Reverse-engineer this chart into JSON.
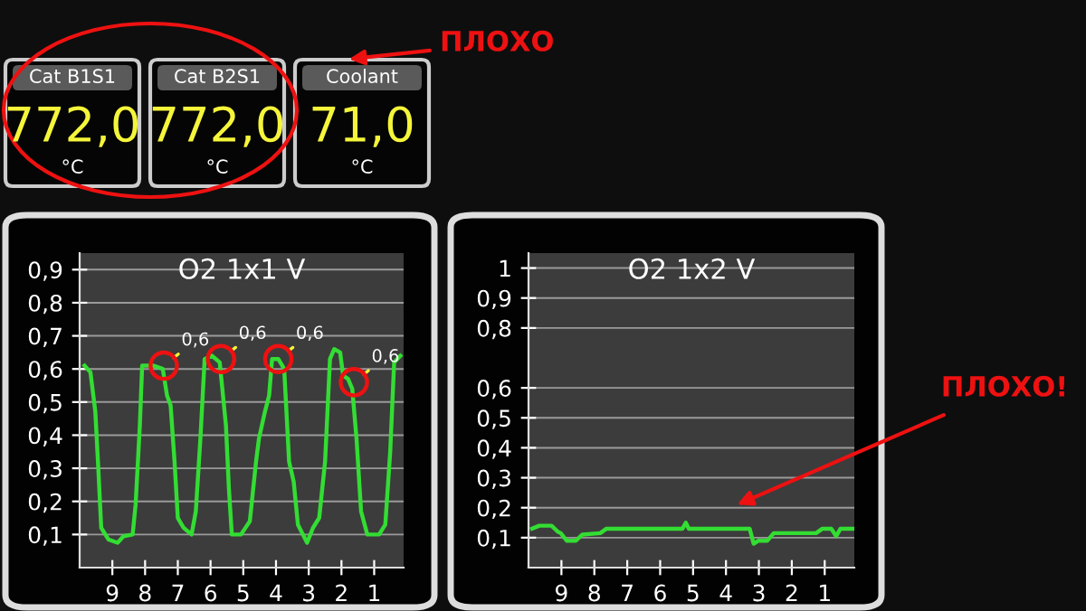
{
  "chart_data": [
    {
      "type": "other",
      "categories": [
        "Cat B1S1",
        "Cat B2S1",
        "Coolant"
      ],
      "value_labels": [
        "772,0",
        "772,0",
        "71,0"
      ],
      "annotations": [
        {
          "text": "°C",
          "x": "Cat B1S1"
        },
        {
          "text": "°C",
          "x": "Cat B2S1"
        },
        {
          "text": "°C",
          "x": "Coolant"
        },
        {
          "text": "ПЛОХО",
          "x": "Coolant"
        }
      ]
    },
    {
      "type": "line",
      "title": "O2 1x1 V",
      "xlim": [
        10,
        0.1
      ],
      "ylim": [
        0,
        0.95
      ],
      "grid": "y",
      "xticks": [
        9,
        8,
        7,
        6,
        5,
        4,
        3,
        2,
        1
      ],
      "yticks": [
        {
          "value": 0.1,
          "label": "0,1"
        },
        {
          "value": 0.2,
          "label": "0,2"
        },
        {
          "value": 0.3,
          "label": "0,3"
        },
        {
          "value": 0.4,
          "label": "0,4"
        },
        {
          "value": 0.5,
          "label": "0,5"
        },
        {
          "value": 0.6,
          "label": "0,6"
        },
        {
          "value": 0.7,
          "label": "0,7"
        },
        {
          "value": 0.8,
          "label": "0,8"
        },
        {
          "value": 0.9,
          "label": "0,9"
        }
      ],
      "series": [
        {
          "color": "#33dd33",
          "x": [
            9.85,
            9.67,
            9.52,
            9.43,
            9.34,
            9.12,
            8.84,
            8.66,
            8.38,
            8.29,
            8.16,
            8.09,
            7.74,
            7.46,
            7.33,
            7.22,
            7.1,
            7.0,
            6.82,
            6.58,
            6.45,
            6.31,
            6.18,
            5.96,
            5.72,
            5.53,
            5.44,
            5.35,
            5.07,
            4.8,
            4.61,
            4.52,
            4.34,
            4.21,
            4.12,
            3.93,
            3.75,
            3.6,
            3.46,
            3.33,
            3.05,
            2.87,
            2.68,
            2.5,
            2.35,
            2.22,
            2.04,
            1.95,
            1.8,
            1.67,
            1.54,
            1.4,
            1.21,
            0.85,
            0.66,
            0.51,
            0.39,
            0.2
          ],
          "values": [
            0.61,
            0.59,
            0.47,
            0.3,
            0.12,
            0.085,
            0.075,
            0.095,
            0.1,
            0.19,
            0.43,
            0.61,
            0.61,
            0.6,
            0.52,
            0.49,
            0.32,
            0.15,
            0.12,
            0.1,
            0.17,
            0.39,
            0.63,
            0.64,
            0.62,
            0.43,
            0.24,
            0.1,
            0.1,
            0.14,
            0.32,
            0.39,
            0.47,
            0.52,
            0.63,
            0.63,
            0.6,
            0.32,
            0.26,
            0.13,
            0.075,
            0.12,
            0.15,
            0.32,
            0.63,
            0.66,
            0.65,
            0.58,
            0.57,
            0.54,
            0.39,
            0.17,
            0.1,
            0.1,
            0.13,
            0.35,
            0.62,
            0.64
          ]
        }
      ],
      "annotations": [
        {
          "text": "0,6",
          "x": 7.43,
          "y": 0.61
        },
        {
          "text": "0,6",
          "x": 5.68,
          "y": 0.63
        },
        {
          "text": "0,6",
          "x": 3.93,
          "y": 0.63
        },
        {
          "text": "0,6",
          "x": 1.62,
          "y": 0.56
        }
      ]
    },
    {
      "type": "line",
      "title": "O2 1x2 V",
      "xlim": [
        10,
        0.1
      ],
      "ylim": [
        0,
        1.05
      ],
      "grid": "y",
      "xticks": [
        9,
        8,
        7,
        6,
        5,
        4,
        3,
        2,
        1
      ],
      "yticks": [
        {
          "value": 0.1,
          "label": "0,1"
        },
        {
          "value": 0.2,
          "label": "0,2"
        },
        {
          "value": 0.3,
          "label": "0,3"
        },
        {
          "value": 0.4,
          "label": "0,4"
        },
        {
          "value": 0.5,
          "label": "0,5"
        },
        {
          "value": 0.6,
          "label": "0,6"
        },
        {
          "value": 0.8,
          "label": "0,8"
        },
        {
          "value": 0.9,
          "label": "0,9"
        },
        {
          "value": 1,
          "label": "1"
        }
      ],
      "series": [
        {
          "color": "#33dd33",
          "x": [
            9.89,
            9.67,
            9.3,
            9.11,
            9.02,
            8.84,
            8.56,
            8.37,
            7.82,
            7.63,
            5.32,
            5.22,
            5.13,
            3.28,
            3.16,
            3.01,
            2.74,
            2.55,
            1.26,
            1.07,
            0.8,
            0.65,
            0.52,
            0.15
          ],
          "values": [
            0.13,
            0.14,
            0.14,
            0.12,
            0.115,
            0.09,
            0.09,
            0.11,
            0.115,
            0.13,
            0.13,
            0.15,
            0.13,
            0.13,
            0.08,
            0.09,
            0.09,
            0.115,
            0.115,
            0.13,
            0.13,
            0.105,
            0.13,
            0.13
          ]
        }
      ],
      "annotations": [
        "ПЛОХО!"
      ]
    }
  ]
}
